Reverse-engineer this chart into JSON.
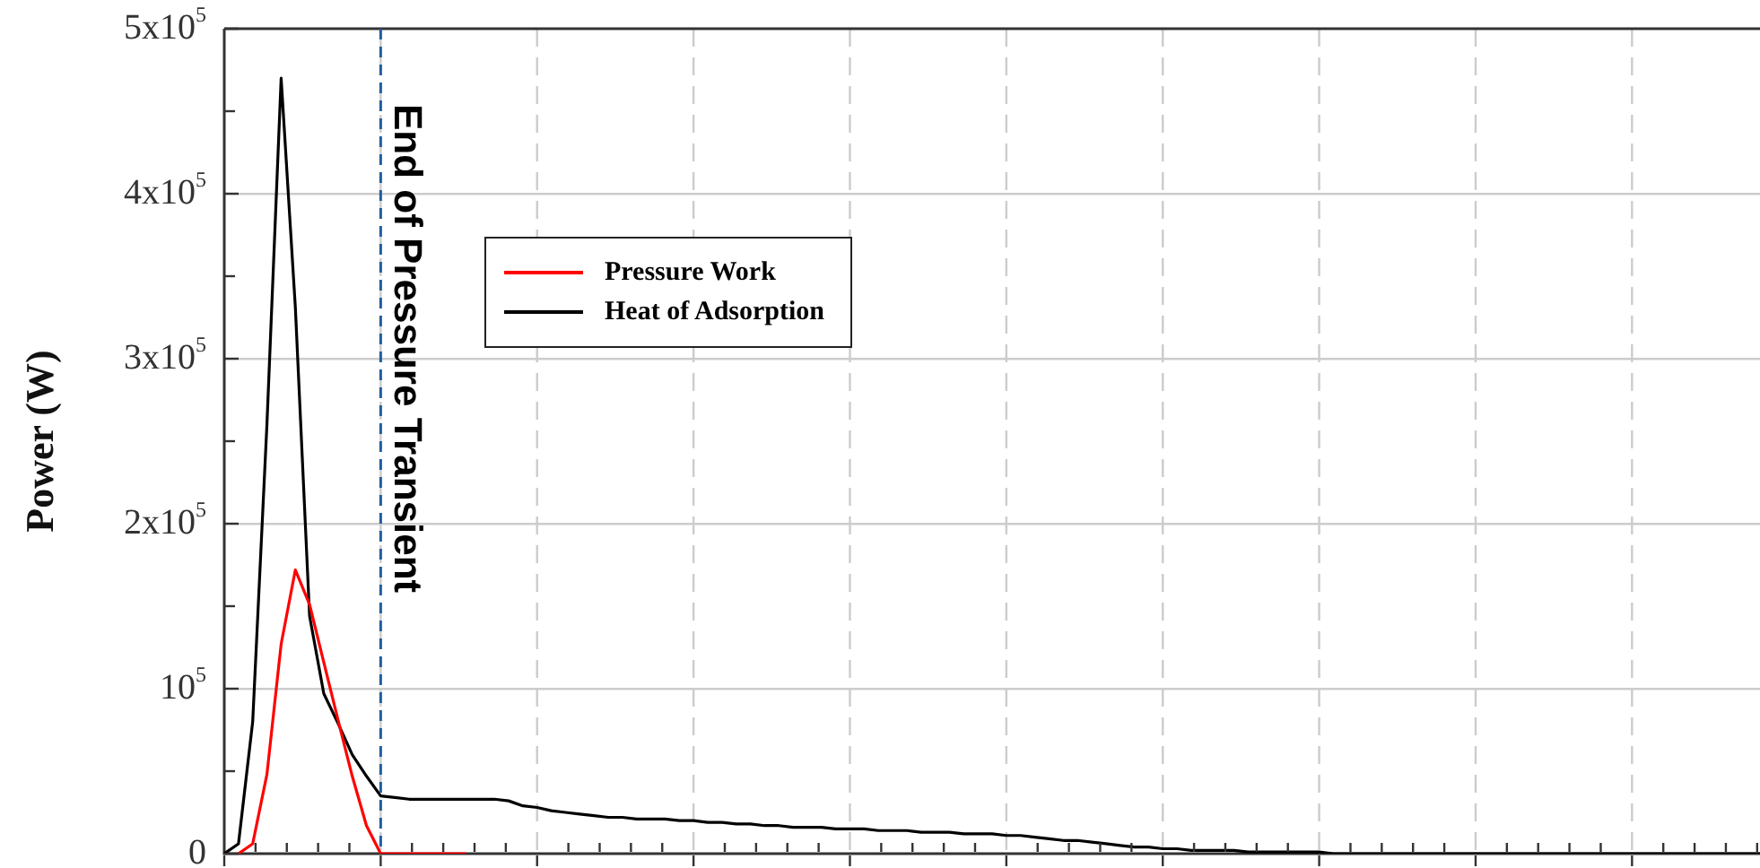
{
  "chart_data": {
    "type": "line",
    "ylabel": "Power (W)",
    "categories": [
      null,
      null,
      null,
      null,
      null,
      null,
      null,
      null,
      null,
      null,
      null,
      null,
      null,
      null,
      null,
      null,
      null,
      null,
      null,
      null,
      null,
      null,
      null,
      null,
      null,
      null,
      null,
      null,
      null,
      null,
      null,
      null,
      null,
      null,
      null,
      null,
      null,
      null,
      null,
      null,
      null,
      null,
      null,
      null,
      null,
      null,
      null,
      null,
      null,
      null,
      null,
      null,
      null,
      null,
      null,
      null,
      null,
      null,
      null,
      null,
      null,
      null,
      null,
      null,
      null,
      null,
      null,
      null,
      null,
      null,
      null,
      null,
      null,
      null,
      null,
      null,
      null,
      null,
      null,
      null,
      null,
      null,
      null,
      null,
      null,
      null,
      null,
      null,
      null,
      null,
      null,
      null,
      null,
      null,
      null,
      null,
      null,
      null,
      null,
      null,
      null,
      null,
      null,
      null,
      null,
      null,
      null,
      null,
      null
    ],
    "ylim": [
      0,
      500000
    ],
    "yticks": [
      0,
      {
        "value": 50000,
        "label": null
      },
      {
        "value": 100000,
        "label": "10$^{5}$"
      },
      {
        "value": 150000,
        "label": null
      },
      {
        "value": 200000,
        "label": "2x10$^{5}$"
      },
      {
        "value": 250000,
        "label": null
      },
      {
        "value": 300000,
        "label": "3x10$^{5}$"
      },
      {
        "value": 350000,
        "label": null
      },
      {
        "value": 400000,
        "label": "4x10$^{5}$"
      },
      {
        "value": 450000,
        "label": null
      },
      {
        "value": 500000,
        "label": "5x10$^{5}$"
      }
    ],
    "tick_labels": "y",
    "grid": true,
    "legend": "top left",
    "marker": "none",
    "line_style": "solid",
    "annotations": [
      "End of Pressure Transient"
    ],
    "series": [
      {
        "name": "Pressure Work",
        "color": "#ff0000",
        "values": [
          null,
          0,
          6000,
          48000,
          127000,
          172000,
          151000,
          116000,
          81000,
          47000,
          17000,
          0,
          0,
          0,
          0,
          0,
          0,
          0,
          null,
          null,
          null,
          null,
          null,
          null,
          null,
          null,
          null,
          null,
          null,
          null,
          null,
          null,
          null,
          null,
          null,
          null,
          null,
          null,
          null,
          null,
          null,
          null,
          null,
          null,
          null,
          null,
          null,
          null,
          null,
          null,
          null,
          null,
          null,
          null,
          null,
          null,
          null,
          null,
          null,
          null,
          null,
          null,
          null,
          null,
          null,
          null,
          null,
          null,
          null,
          null,
          null,
          null,
          null,
          null,
          null,
          null,
          null,
          null,
          null,
          null,
          null,
          null,
          null,
          null,
          null,
          null,
          null,
          null,
          null,
          null,
          null,
          null,
          null,
          null,
          null,
          null,
          null,
          null,
          null,
          null,
          null,
          null,
          null,
          null,
          null,
          null,
          null,
          null,
          null
        ]
      },
      {
        "name": "Heat of Adsorption",
        "color": "#000000",
        "values": [
          0,
          6000,
          80000,
          260000,
          470000,
          331000,
          144000,
          97000,
          79000,
          60000,
          47000,
          35000,
          34000,
          33000,
          33000,
          33000,
          33000,
          33000,
          33000,
          33000,
          32000,
          29000,
          28000,
          26000,
          25000,
          24000,
          23000,
          22000,
          22000,
          21000,
          21000,
          21000,
          20000,
          20000,
          19000,
          19000,
          18000,
          18000,
          17000,
          17000,
          16000,
          16000,
          16000,
          15000,
          15000,
          15000,
          14000,
          14000,
          14000,
          13000,
          13000,
          13000,
          12000,
          12000,
          12000,
          11000,
          11000,
          10000,
          9000,
          8000,
          8000,
          7000,
          6000,
          5000,
          4000,
          4000,
          3000,
          3000,
          2000,
          2000,
          2000,
          2000,
          1000,
          1000,
          1000,
          1000,
          1000,
          1000,
          0,
          0,
          0,
          0,
          0,
          0,
          0,
          0,
          0,
          0,
          0,
          0,
          0,
          0,
          0,
          0,
          0,
          0,
          0,
          0,
          0,
          0,
          0,
          0,
          0,
          0,
          0,
          0,
          0,
          0,
          0
        ]
      }
    ]
  }
}
